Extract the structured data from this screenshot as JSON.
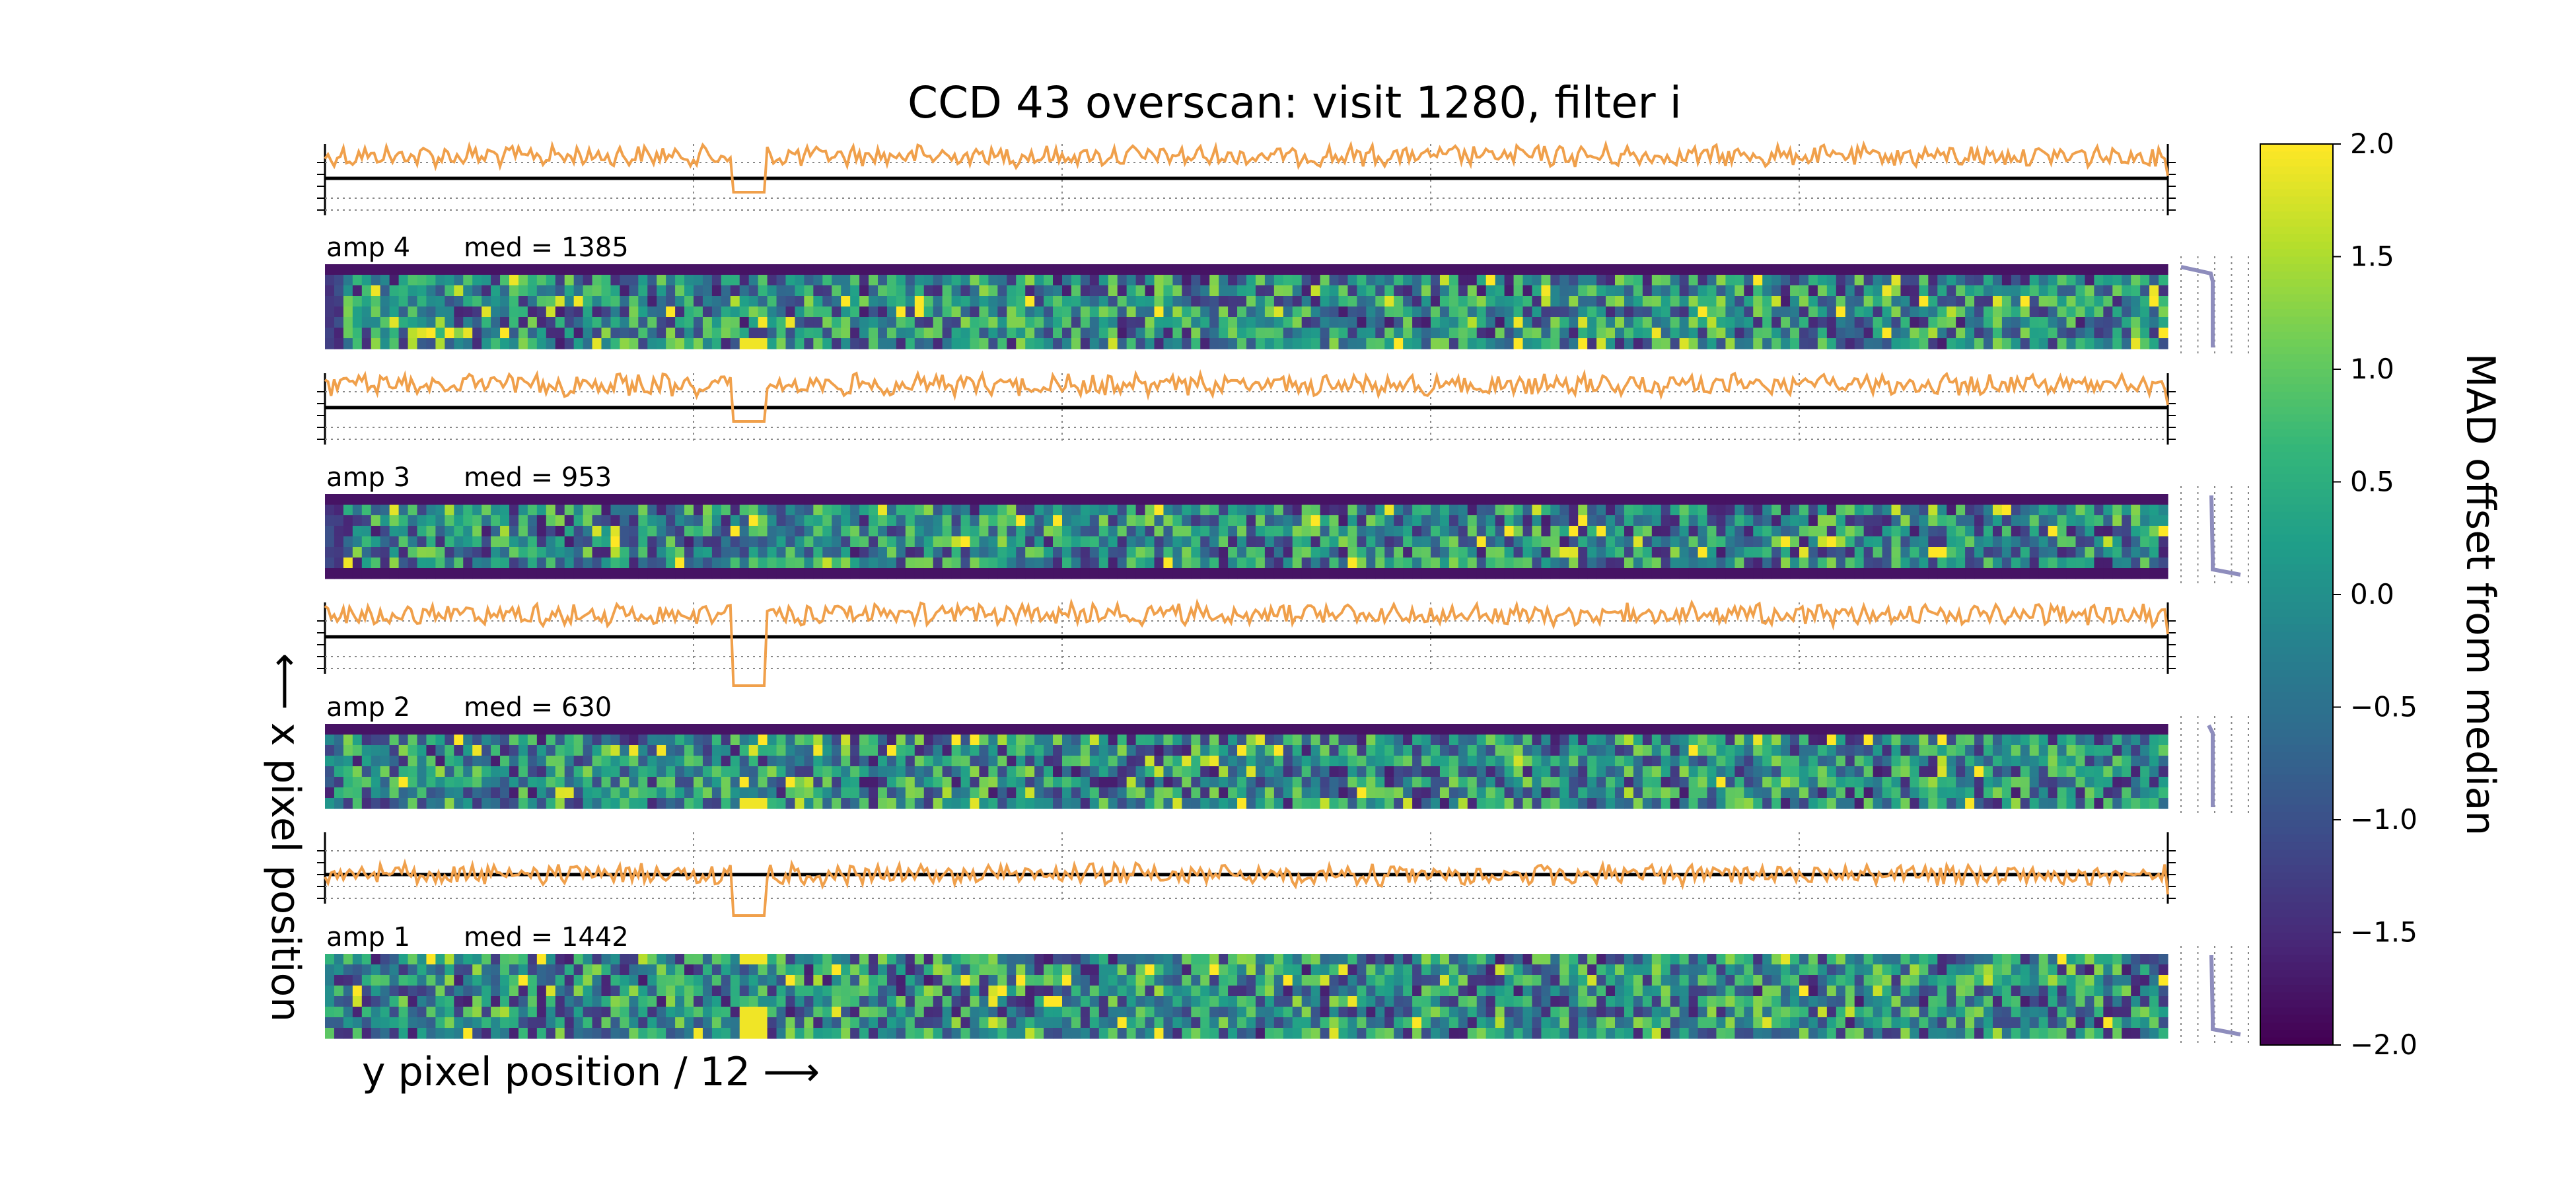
{
  "chart_data": {
    "type": "heatmap",
    "title": "CCD 43 overscan: visit 1280, filter i",
    "xlabel": "y pixel position / 12 ⟶",
    "ylabel": "⟵ x pixel position",
    "colorbar": {
      "label": "MAD offset from median",
      "colormap": "viridis",
      "range": [
        -2.0,
        2.0
      ],
      "ticks": [
        "2.0",
        "1.5",
        "1.0",
        "0.5",
        "0.0",
        "−0.5",
        "−1.0",
        "−1.5",
        "−2.0"
      ],
      "tick_values": [
        2.0,
        1.5,
        1.0,
        0.5,
        0.0,
        -0.5,
        -1.0,
        -1.5,
        -2.0
      ]
    },
    "grid": "dotted vertical lines at quarter points of each row profile",
    "line_color": "#f0a04b",
    "side_profile_color": "#8e8dbd",
    "columns": 200,
    "rows": 8,
    "amps": [
      {
        "label": "amp 4",
        "median_text": "med = 1385",
        "row_profile": "noisy, dip near column 46",
        "bright_column": 46,
        "dark_left_edge": true,
        "side_profile": "top-hook"
      },
      {
        "label": "amp 3",
        "median_text": "med = 953",
        "row_profile": "noisy, dip near column 46",
        "bright_column": 46,
        "dark_left_edge": true,
        "side_profile": "bottom-hook"
      },
      {
        "label": "amp 2",
        "median_text": "med = 630",
        "row_profile": "noisy, deep dip near column 46",
        "bright_column": 46,
        "dark_left_edge": false,
        "side_profile": "top-hook-small"
      },
      {
        "label": "amp 1",
        "median_text": "med = 1442",
        "row_profile": "noisy, deep dip near column 46",
        "bright_column": 46,
        "dark_left_edge": false,
        "side_profile": "bottom-hook"
      }
    ]
  }
}
